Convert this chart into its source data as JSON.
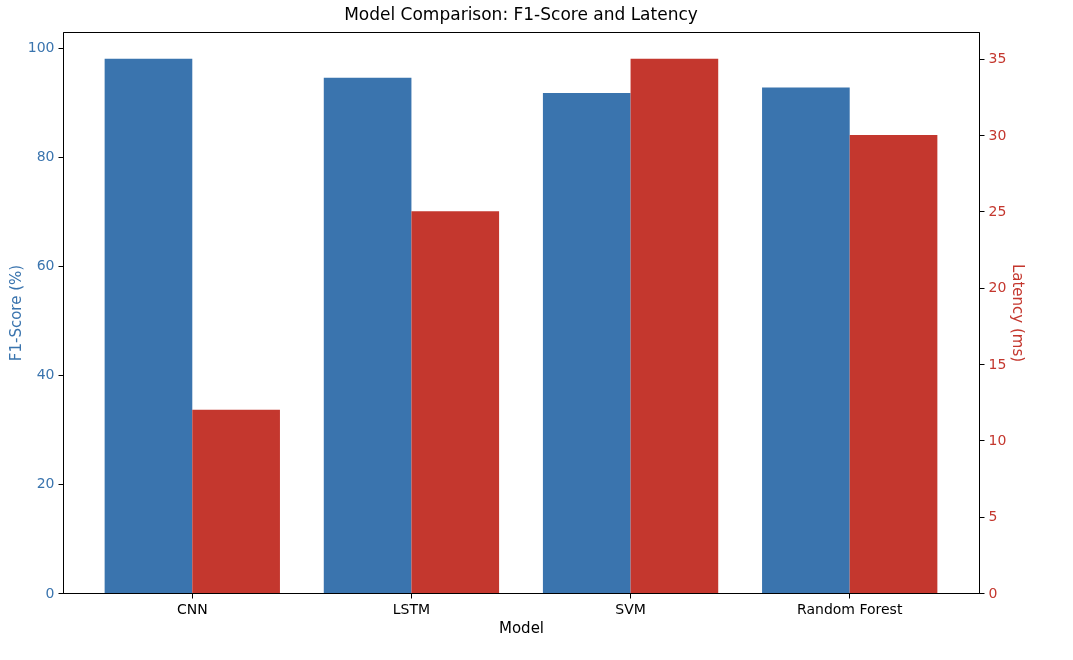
{
  "chart_data": {
    "type": "bar",
    "title": "Model Comparison: F1-Score and Latency",
    "xlabel": "Model",
    "ylabel": "F1-Score (%)",
    "y2label": "Latency (ms)",
    "categories": [
      "CNN",
      "LSTM",
      "SVM",
      "Random Forest"
    ],
    "series": [
      {
        "color": "#3a74ae",
        "values": [
          98.0,
          94.5,
          91.7,
          92.7
        ],
        "axis": "y"
      },
      {
        "color": "#c4372e",
        "values": [
          12,
          25,
          35,
          30
        ],
        "axis": "y2"
      }
    ],
    "ylim": [
      0,
      102.9
    ],
    "yticks": [
      0,
      20,
      40,
      60,
      80,
      100
    ],
    "y2lim": [
      0,
      36.75
    ],
    "y2ticks": [
      0,
      5,
      10,
      15,
      20,
      25,
      30,
      35
    ],
    "grid": false
  }
}
